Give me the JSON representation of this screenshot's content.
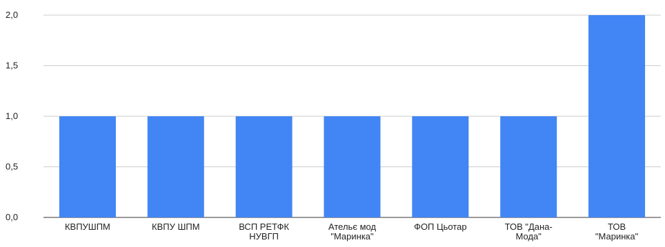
{
  "chart_data": {
    "type": "bar",
    "title": "",
    "xlabel": "",
    "ylabel": "",
    "categories": [
      [
        "КВПУШПМ"
      ],
      [
        "КВПУ ШПМ"
      ],
      [
        "ВСП РЕТФК",
        "НУВГП"
      ],
      [
        "Ательє мод",
        "\"Маринка\""
      ],
      [
        "ФОП Цьотар"
      ],
      [
        "ТОВ \"Дана-",
        "Мода\""
      ],
      [
        "ТОВ",
        "\"Маринка\""
      ]
    ],
    "values": [
      1,
      1,
      1,
      1,
      1,
      1,
      2
    ],
    "ylim": [
      0,
      2
    ],
    "yticks": [
      "0,0",
      "0,5",
      "1,0",
      "1,5",
      "2,0"
    ],
    "ytick_values": [
      0,
      0.5,
      1,
      1.5,
      2
    ],
    "bar_color": "#4285f4",
    "grid_color": "#cccccc",
    "grid": true,
    "legend": "none"
  }
}
